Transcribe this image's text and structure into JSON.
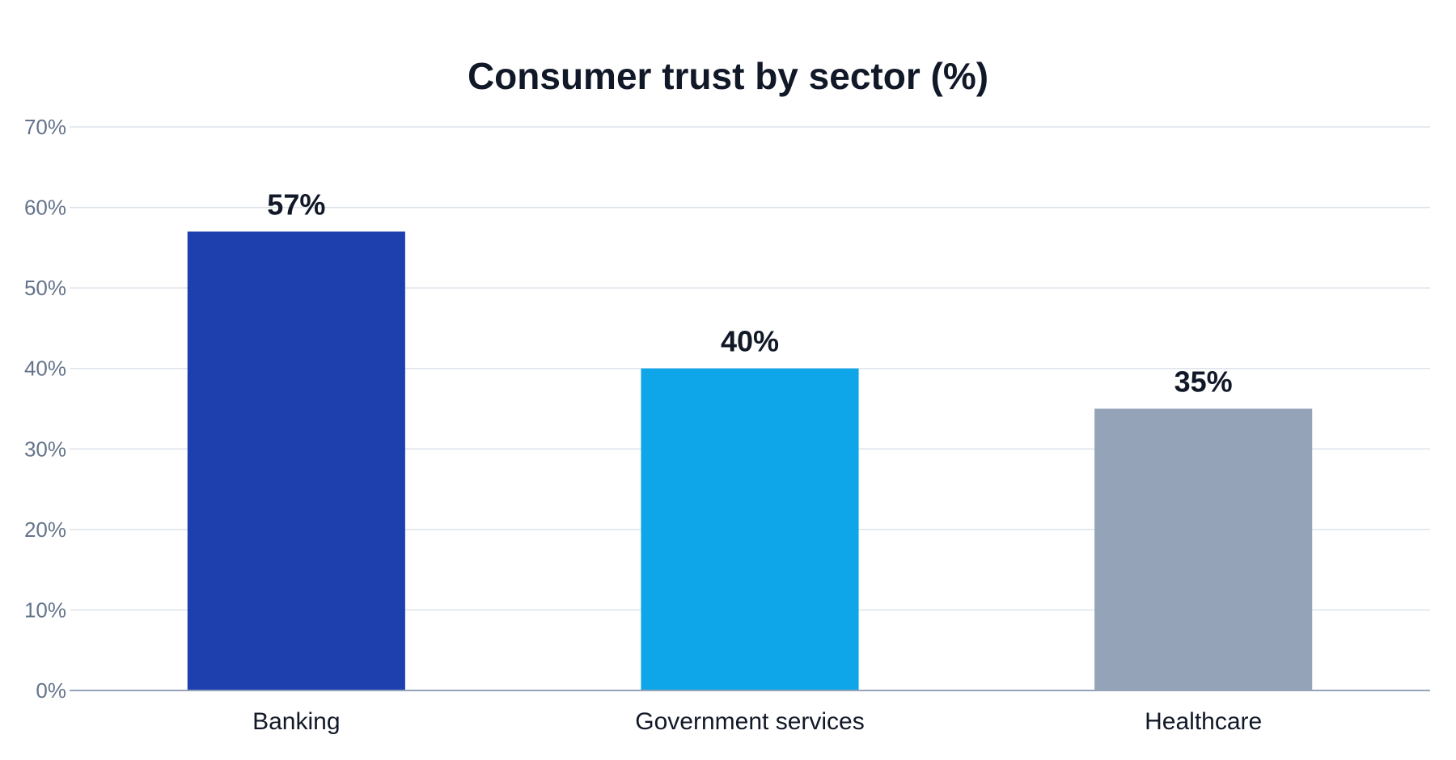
{
  "chart_data": {
    "type": "bar",
    "title": "Consumer trust by sector (%)",
    "categories": [
      "Banking",
      "Government services",
      "Healthcare"
    ],
    "values": [
      57,
      40,
      35
    ],
    "data_labels": [
      "57%",
      "40%",
      "35%"
    ],
    "colors": [
      "#1e40af",
      "#0ea5e9",
      "#94a3b8"
    ],
    "ylim": [
      0,
      70
    ],
    "y_ticks": [
      0,
      10,
      20,
      30,
      40,
      50,
      60,
      70
    ],
    "y_tick_labels": [
      "0%",
      "10%",
      "20%",
      "30%",
      "40%",
      "50%",
      "60%",
      "70%"
    ],
    "xlabel": "",
    "ylabel": "",
    "grid": true,
    "legend": "none"
  }
}
